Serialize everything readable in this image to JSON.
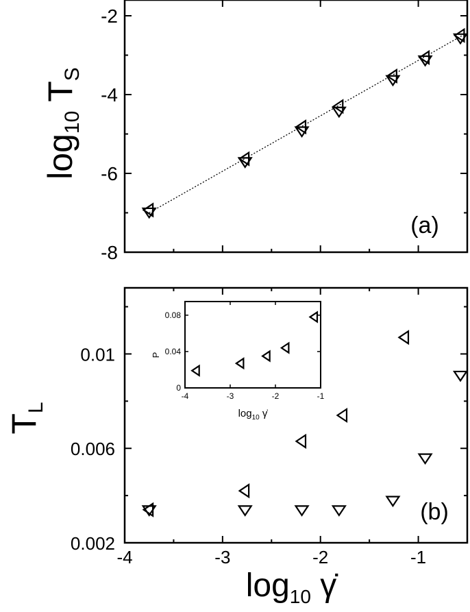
{
  "chart_data": [
    {
      "panel": "(a)",
      "type": "scatter",
      "ylabel_main": "log",
      "ylabel_sub": "10",
      "ylabel_tail": " T",
      "ylabel_tail_sub": "S",
      "xlim": [
        -4,
        -0.5
      ],
      "ylim": [
        -8,
        -1.6
      ],
      "yticks": [
        -8,
        -6,
        -4,
        -2
      ],
      "ytick_labels": [
        "-8",
        "-6",
        "-4",
        "-2"
      ],
      "xticks": [
        -4,
        -3,
        -2,
        -1
      ],
      "grid": false,
      "fit_line": {
        "x": [
          -3.75,
          -0.55
        ],
        "y": [
          -7.0,
          -2.5
        ]
      },
      "series": [
        {
          "marker": "triangle-down",
          "x": [
            -3.75,
            -2.77,
            -2.19,
            -1.81,
            -1.26,
            -0.93,
            -0.57
          ],
          "y": [
            -6.98,
            -5.7,
            -4.92,
            -4.42,
            -3.62,
            -3.12,
            -2.56
          ]
        },
        {
          "marker": "triangle-left",
          "x": [
            -3.75,
            -2.77,
            -2.19,
            -1.81,
            -1.26,
            -0.93,
            -0.57
          ],
          "y": [
            -6.93,
            -5.63,
            -4.82,
            -4.3,
            -3.53,
            -3.06,
            -2.5
          ]
        }
      ]
    },
    {
      "panel": "(b)",
      "type": "scatter",
      "ylabel_main": "T",
      "ylabel_sub": "L",
      "xlabel_main": "log",
      "xlabel_sub": "10",
      "xlabel_tail": " γ̇",
      "xlim": [
        -4,
        -0.5
      ],
      "ylim": [
        0.002,
        0.0128
      ],
      "yticks": [
        0.002,
        0.006,
        0.01
      ],
      "ytick_labels": [
        "0.002",
        "0.006",
        "0.01"
      ],
      "xticks": [
        -4,
        -3,
        -2,
        -1
      ],
      "xtick_labels": [
        "-4",
        "-3",
        "-2",
        "-1"
      ],
      "grid": false,
      "series": [
        {
          "marker": "triangle-down",
          "x": [
            -3.75,
            -2.77,
            -2.19,
            -1.81,
            -1.26,
            -0.93,
            -0.57
          ],
          "y": [
            0.0034,
            0.0034,
            0.0034,
            0.0034,
            0.0038,
            0.0056,
            0.0091
          ]
        },
        {
          "marker": "triangle-left",
          "x": [
            -3.75,
            -2.77,
            -2.19,
            -1.77,
            -1.14
          ],
          "y": [
            0.0034,
            0.0042,
            0.0063,
            0.0074,
            0.0107
          ]
        }
      ],
      "inset": {
        "type": "scatter",
        "ylabel": "P",
        "xlabel_main": "log",
        "xlabel_sub": "10",
        "xlabel_tail": " γ̇",
        "xlim": [
          -4,
          -1
        ],
        "ylim": [
          0,
          0.095
        ],
        "yticks": [
          0,
          0.04,
          0.08
        ],
        "ytick_labels": [
          "0",
          "0.04",
          "0.08"
        ],
        "xticks": [
          -4,
          -3,
          -2,
          -1
        ],
        "xtick_labels": [
          "-4",
          "-3",
          "-2",
          "-1"
        ],
        "series": [
          {
            "marker": "triangle-left",
            "x": [
              -3.75,
              -2.77,
              -2.19,
              -1.77,
              -1.14
            ],
            "y": [
              0.019,
              0.027,
              0.035,
              0.044,
              0.078
            ]
          }
        ]
      }
    }
  ]
}
